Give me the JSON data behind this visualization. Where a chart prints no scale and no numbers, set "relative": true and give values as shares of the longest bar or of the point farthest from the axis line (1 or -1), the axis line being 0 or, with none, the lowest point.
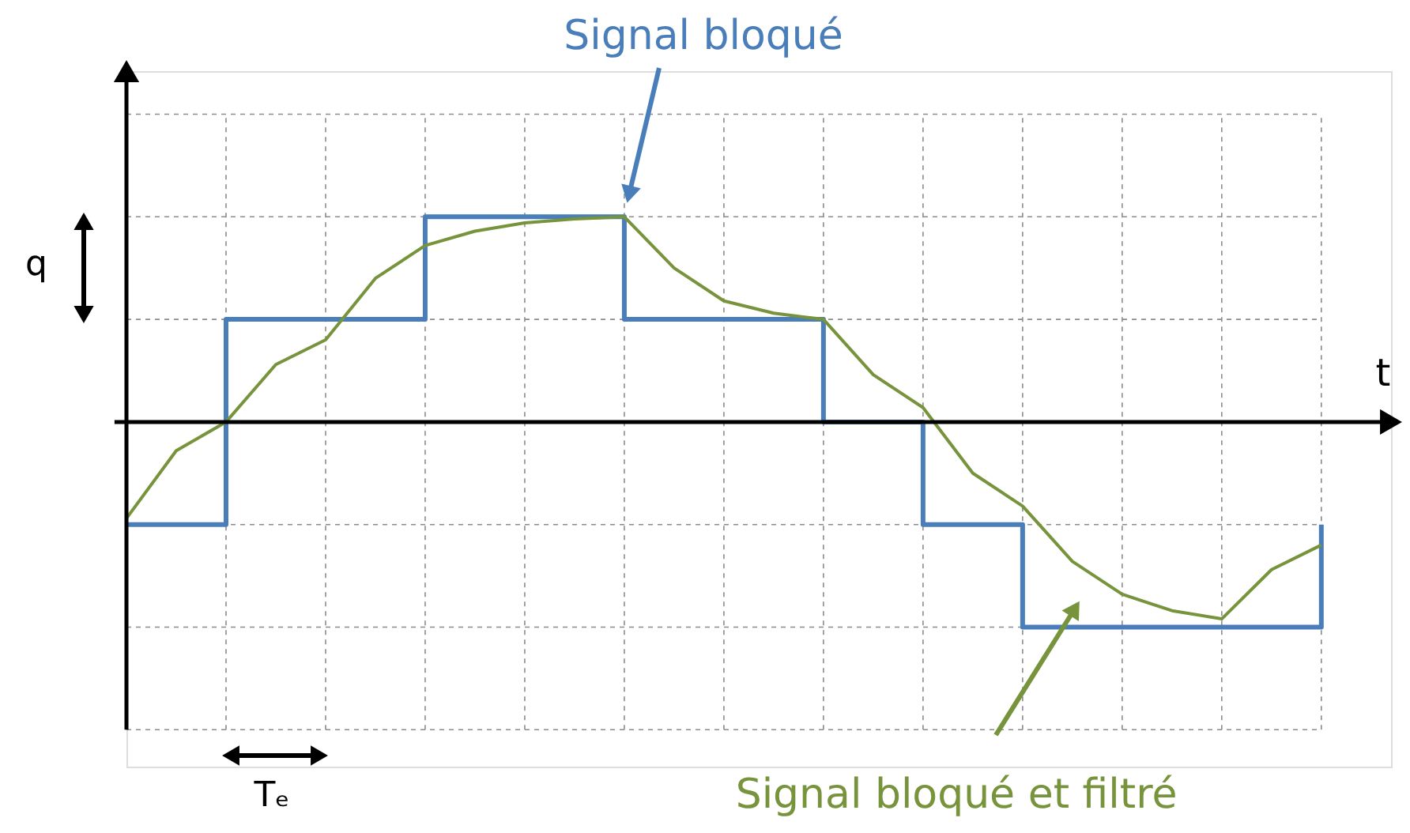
{
  "chart_data": {
    "type": "line",
    "relative": true,
    "xlabel": "t",
    "categories": [
      null,
      null,
      null,
      null,
      null,
      null,
      null,
      null,
      null,
      null,
      null,
      null,
      null,
      null,
      null,
      null,
      null,
      null,
      null,
      null,
      null,
      null,
      null,
      null,
      null
    ],
    "grid": true,
    "series": [
      {
        "type": "step",
        "color": "#4a7ebb",
        "values": [
          -0.5,
          -0.5,
          0.5,
          0.5,
          0.5,
          0.5,
          1,
          1,
          1,
          1,
          0.5,
          0.5,
          0.5,
          0.5,
          0,
          0,
          -0.5,
          -0.5,
          -1,
          -1,
          -1,
          -1,
          -1,
          -1,
          -0.5
        ]
      },
      {
        "color": "#77933c",
        "values": [
          -0.47,
          -0.14,
          0,
          0.28,
          0.4,
          0.7,
          0.86,
          0.93,
          0.97,
          0.99,
          1,
          0.75,
          0.59,
          0.53,
          0.5,
          0.23,
          0.07,
          -0.25,
          -0.41,
          -0.68,
          -0.84,
          -0.92,
          -0.96,
          -0.72,
          -0.6
        ]
      }
    ],
    "annotations": [
      "Signal bloqué",
      "Signal bloqué et filtré",
      "q",
      "Tₑ"
    ]
  }
}
